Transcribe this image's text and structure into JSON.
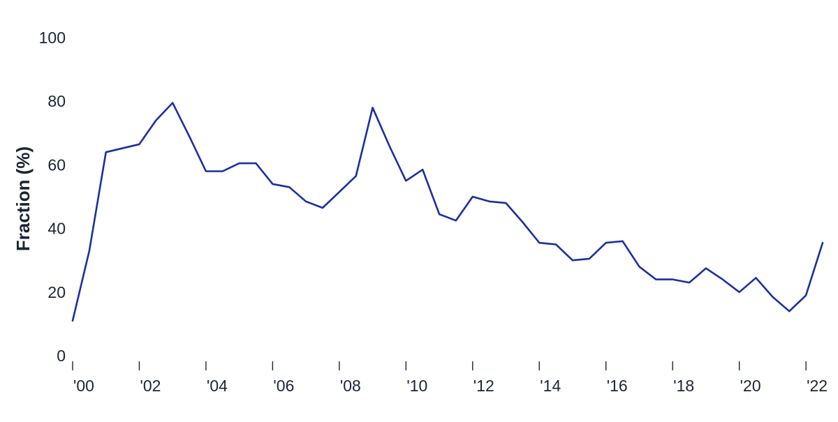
{
  "chart_data": {
    "type": "line",
    "title": "",
    "xlabel": "",
    "ylabel": "Fraction (%)",
    "ylim": [
      0,
      100
    ],
    "xlim": [
      2000,
      2022.5
    ],
    "grid": false,
    "yticks": [
      0,
      20,
      40,
      60,
      80,
      100
    ],
    "ytick_labels": [
      "0",
      "20",
      "40",
      "60",
      "80",
      "100"
    ],
    "xticks": [
      2000,
      2002,
      2004,
      2006,
      2008,
      2010,
      2012,
      2014,
      2016,
      2018,
      2020,
      2022
    ],
    "xtick_labels": [
      "'00",
      "'02",
      "'04",
      "'06",
      "'08",
      "'10",
      "'12",
      "'14",
      "'16",
      "'18",
      "'20",
      "'22"
    ],
    "colors": {
      "line": "#1a2fa0",
      "text": "#1b2433"
    },
    "series": [
      {
        "x": [
          2000,
          2000.5,
          2001,
          2002,
          2002.5,
          2003,
          2003.5,
          2004,
          2004.5,
          2005,
          2005.5,
          2006,
          2006.5,
          2007,
          2007.5,
          2008,
          2008.5,
          2009,
          2009.5,
          2010,
          2010.5,
          2011,
          2011.5,
          2012,
          2012.5,
          2013,
          2013.5,
          2014,
          2014.5,
          2015,
          2015.5,
          2016,
          2016.5,
          2017,
          2017.5,
          2018,
          2018.5,
          2019,
          2019.5,
          2020,
          2020.5,
          2021,
          2021.5,
          2022,
          2022.5
        ],
        "values": [
          11,
          33,
          64,
          66.5,
          74,
          79.5,
          69,
          58,
          58,
          60.5,
          60.5,
          54,
          53,
          48.5,
          46.5,
          51.5,
          56.5,
          78,
          66,
          55,
          58.5,
          44.5,
          42.5,
          50,
          48.5,
          48,
          42,
          35.5,
          35,
          30,
          30.5,
          35.5,
          36,
          28,
          24,
          24,
          23,
          27.5,
          24,
          20,
          24.5,
          18.5,
          14,
          19,
          35.5
        ]
      }
    ]
  }
}
